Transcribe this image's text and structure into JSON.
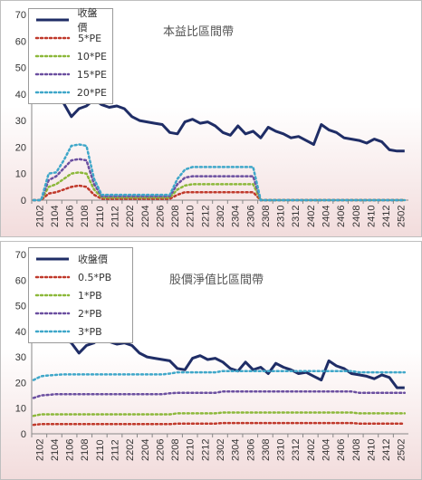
{
  "colors": {
    "price": "#1f2d66",
    "band1": "#c0392b",
    "band2": "#8cb83a",
    "band3": "#6b4fa0",
    "band4": "#3fa7c9"
  },
  "chart_data": [
    {
      "type": "line",
      "title": "本益比區間帶",
      "xlabel": "",
      "ylabel": "",
      "ylim": [
        0,
        70
      ],
      "yticks": [
        "0",
        "10",
        "20",
        "30",
        "40",
        "50",
        "60",
        "70"
      ],
      "xticks": [
        "2102",
        "2104",
        "2106",
        "2108",
        "2110",
        "2112",
        "2202",
        "2204",
        "2206",
        "2208",
        "2210",
        "2212",
        "2302",
        "2304",
        "2306",
        "2308",
        "2310",
        "2312",
        "2402",
        "2404",
        "2406",
        "2408",
        "2410",
        "2412",
        "2502"
      ],
      "legend_position": "top-left",
      "series": [
        {
          "name": "收盤價",
          "values": [
            47,
            45,
            43,
            40,
            36.5,
            31.5,
            34.5,
            35.5,
            38,
            36,
            35,
            35.5,
            34.5,
            31.5,
            30,
            29.5,
            29,
            28.5,
            25.5,
            25,
            29.5,
            30.5,
            29,
            29.5,
            28,
            25.5,
            24.5,
            28,
            25,
            26,
            23.5,
            27.5,
            26,
            25,
            23.5,
            24,
            22.5,
            21,
            28.5,
            26.5,
            25.5,
            23.5,
            23,
            22.5,
            21.5,
            23,
            22,
            19,
            18.5,
            18.5
          ]
        },
        {
          "name": "5*PE",
          "values": [
            0,
            0,
            2.5,
            3,
            4,
            5,
            5.5,
            5,
            2,
            0.5,
            0.5,
            0.5,
            0.5,
            0.5,
            0.5,
            0.5,
            0.5,
            0.5,
            0.5,
            2,
            3,
            3,
            3,
            3,
            3,
            3,
            3,
            3,
            3,
            3,
            0,
            0,
            0,
            0,
            0,
            0,
            0,
            0,
            0,
            0,
            0,
            0,
            0,
            0,
            0,
            0,
            0,
            0,
            0,
            0
          ]
        },
        {
          "name": "10*PE",
          "values": [
            0,
            0,
            5,
            6,
            8,
            10,
            10.5,
            10,
            4,
            1,
            1,
            1,
            1,
            1,
            1,
            1,
            1,
            1,
            1,
            4,
            5.5,
            6,
            6,
            6,
            6,
            6,
            6,
            6,
            6,
            6,
            0,
            0,
            0,
            0,
            0,
            0,
            0,
            0,
            0,
            0,
            0,
            0,
            0,
            0,
            0,
            0,
            0,
            0,
            0,
            0
          ]
        },
        {
          "name": "15*PE",
          "values": [
            0,
            0,
            7.5,
            9,
            12,
            15,
            15.5,
            15,
            6,
            1.5,
            1.5,
            1.5,
            1.5,
            1.5,
            1.5,
            1.5,
            1.5,
            1.5,
            1.5,
            6,
            8.5,
            9,
            9,
            9,
            9,
            9,
            9,
            9,
            9,
            9,
            0,
            0,
            0,
            0,
            0,
            0,
            0,
            0,
            0,
            0,
            0,
            0,
            0,
            0,
            0,
            0,
            0,
            0,
            0,
            0
          ]
        },
        {
          "name": "20*PE",
          "values": [
            0,
            0,
            10,
            10.5,
            15,
            20.5,
            21,
            20.5,
            8,
            2,
            2,
            2,
            2,
            2,
            2,
            2,
            2,
            2,
            2,
            8,
            11.5,
            12.5,
            12.5,
            12.5,
            12.5,
            12.5,
            12.5,
            12.5,
            12.5,
            12.5,
            0,
            0,
            0,
            0,
            0,
            0,
            0,
            0,
            0,
            0,
            0,
            0,
            0,
            0,
            0,
            0,
            0,
            0,
            0,
            0
          ]
        }
      ]
    },
    {
      "type": "line",
      "title": "股價淨值比區間帶",
      "xlabel": "",
      "ylabel": "",
      "ylim": [
        0,
        70
      ],
      "yticks": [
        "0",
        "10",
        "20",
        "30",
        "40",
        "50",
        "60",
        "70"
      ],
      "xticks": [
        "2102",
        "2104",
        "2106",
        "2108",
        "2110",
        "2112",
        "2202",
        "2204",
        "2206",
        "2208",
        "2210",
        "2212",
        "2302",
        "2304",
        "2306",
        "2308",
        "2310",
        "2312",
        "2402",
        "2404",
        "2406",
        "2408",
        "2410",
        "2412",
        "2502"
      ],
      "legend_position": "top-left",
      "series": [
        {
          "name": "收盤價",
          "values": [
            47,
            45,
            40,
            39.5,
            37,
            35.5,
            31.5,
            34.5,
            35.5,
            38,
            36,
            35,
            35.5,
            34.5,
            31.5,
            30,
            29.5,
            29,
            28.5,
            25.5,
            25,
            29.5,
            30.5,
            29,
            29.5,
            28,
            25.5,
            24.5,
            28,
            25,
            26,
            23.5,
            27.5,
            26,
            25,
            23.5,
            24,
            22.5,
            21,
            28.5,
            26.5,
            25.5,
            23.5,
            23,
            22.5,
            21.5,
            23,
            22,
            18,
            18
          ]
        },
        {
          "name": "0.5*PB",
          "values": [
            3.5,
            3.8,
            3.8,
            3.8,
            3.8,
            3.8,
            3.8,
            3.8,
            3.8,
            3.8,
            3.8,
            3.8,
            3.8,
            3.8,
            3.8,
            3.8,
            3.8,
            3.8,
            3.8,
            4,
            4,
            4,
            4,
            4,
            4,
            4.2,
            4.2,
            4.2,
            4.2,
            4.2,
            4.2,
            4.2,
            4.2,
            4.2,
            4.2,
            4.2,
            4.2,
            4.2,
            4.2,
            4.2,
            4.2,
            4.2,
            4.2,
            4,
            4,
            4,
            4,
            4,
            4,
            4
          ]
        },
        {
          "name": "1*PB",
          "values": [
            7,
            7.6,
            7.6,
            7.6,
            7.6,
            7.6,
            7.6,
            7.6,
            7.6,
            7.6,
            7.6,
            7.6,
            7.6,
            7.6,
            7.6,
            7.6,
            7.6,
            7.6,
            7.6,
            8,
            8,
            8,
            8,
            8,
            8,
            8.3,
            8.3,
            8.3,
            8.3,
            8.3,
            8.3,
            8.3,
            8.3,
            8.3,
            8.3,
            8.3,
            8.3,
            8.3,
            8.3,
            8.3,
            8.3,
            8.3,
            8.3,
            8,
            8,
            8,
            8,
            8,
            8,
            8
          ]
        },
        {
          "name": "2*PB",
          "values": [
            14,
            15,
            15.2,
            15.5,
            15.5,
            15.5,
            15.5,
            15.5,
            15.5,
            15.5,
            15.5,
            15.5,
            15.5,
            15.5,
            15.5,
            15.5,
            15.5,
            15.5,
            15.8,
            16,
            16,
            16,
            16,
            16,
            16,
            16.5,
            16.5,
            16.5,
            16.5,
            16.5,
            16.5,
            16.5,
            16.5,
            16.5,
            16.5,
            16.5,
            16.5,
            16.5,
            16.5,
            16.5,
            16.5,
            16.5,
            16.5,
            16,
            16,
            16,
            16,
            16,
            16,
            16
          ]
        },
        {
          "name": "3*PB",
          "values": [
            21,
            22.5,
            22.8,
            23,
            23.2,
            23.2,
            23.2,
            23.2,
            23.2,
            23.2,
            23.2,
            23.2,
            23.2,
            23.2,
            23.2,
            23.2,
            23.2,
            23.2,
            23.5,
            24,
            24,
            24,
            24,
            24,
            24,
            24.5,
            24.5,
            24.5,
            24.5,
            24.5,
            24.5,
            24.5,
            24.5,
            24.5,
            24.5,
            24.5,
            24.5,
            24.5,
            24.5,
            24.5,
            24.5,
            24.5,
            24.5,
            24,
            24,
            24,
            24,
            24,
            24,
            24
          ]
        }
      ]
    }
  ]
}
